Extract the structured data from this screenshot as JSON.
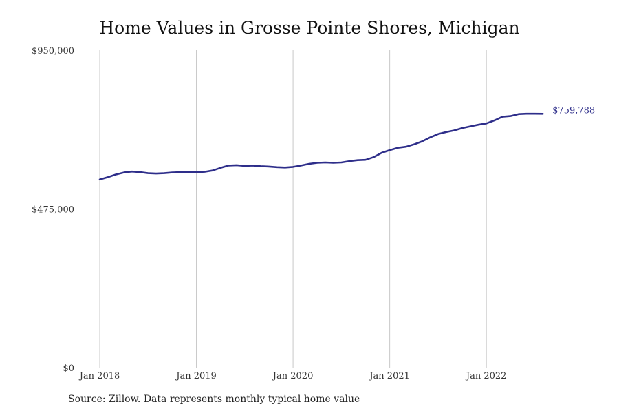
{
  "chart_data": {
    "type": "line",
    "title": "Home Values in Grosse Pointe Shores, Michigan",
    "xlabel": "",
    "ylabel": "",
    "ylim": [
      0,
      950000
    ],
    "yticks": [
      {
        "value": 0,
        "label": "$0"
      },
      {
        "value": 475000,
        "label": "$475,000"
      },
      {
        "value": 950000,
        "label": "$950,000"
      }
    ],
    "xticks": [
      {
        "value": "2018-01",
        "label": "Jan 2018"
      },
      {
        "value": "2019-01",
        "label": "Jan 2019"
      },
      {
        "value": "2020-01",
        "label": "Jan 2020"
      },
      {
        "value": "2021-01",
        "label": "Jan 2021"
      },
      {
        "value": "2022-01",
        "label": "Jan 2022"
      }
    ],
    "xlim": [
      "2018-01",
      "2022-12"
    ],
    "grid": "vertical",
    "line_color": "#2e2e8a",
    "end_label": "$759,788",
    "series": [
      {
        "x": [
          "2018-01",
          "2018-02",
          "2018-03",
          "2018-04",
          "2018-05",
          "2018-06",
          "2018-07",
          "2018-08",
          "2018-09",
          "2018-10",
          "2018-11",
          "2018-12",
          "2019-01",
          "2019-02",
          "2019-03",
          "2019-04",
          "2019-05",
          "2019-06",
          "2019-07",
          "2019-08",
          "2019-09",
          "2019-10",
          "2019-11",
          "2019-12",
          "2020-01",
          "2020-02",
          "2020-03",
          "2020-04",
          "2020-05",
          "2020-06",
          "2020-07",
          "2020-08",
          "2020-09",
          "2020-10",
          "2020-11",
          "2020-12",
          "2021-01",
          "2021-02",
          "2021-03",
          "2021-04",
          "2021-05",
          "2021-06",
          "2021-07",
          "2021-08",
          "2021-09",
          "2021-10",
          "2021-11",
          "2021-12",
          "2022-01",
          "2022-02",
          "2022-03",
          "2022-04",
          "2022-05",
          "2022-06",
          "2022-07",
          "2022-08"
        ],
        "values": [
          563000,
          570000,
          578000,
          584000,
          587000,
          585000,
          582000,
          581000,
          582000,
          584000,
          585000,
          585000,
          585000,
          586000,
          590000,
          598000,
          605000,
          606000,
          604000,
          605000,
          603000,
          602000,
          600000,
          599000,
          601000,
          605000,
          610000,
          613000,
          614000,
          613000,
          614000,
          618000,
          621000,
          622000,
          630000,
          643000,
          651000,
          658000,
          661000,
          668000,
          677000,
          689000,
          699000,
          705000,
          710000,
          717000,
          722000,
          727000,
          731000,
          740000,
          751000,
          753000,
          759000,
          760000,
          760000,
          759788
        ]
      }
    ]
  },
  "source": "Source: Zillow. Data represents monthly typical home value"
}
